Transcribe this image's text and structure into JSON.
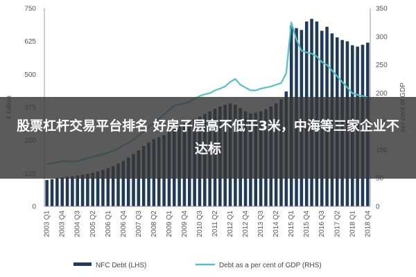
{
  "headline": "股票杠杆交易平台排名 好房子层高不低于3米，中海等三家企业不达标",
  "chart_data": {
    "type": "bar",
    "categories": [
      "2003 Q1",
      "2003 Q2",
      "2003 Q3",
      "2003 Q4",
      "2004 Q1",
      "2004 Q2",
      "2004 Q3",
      "2004 Q4",
      "2005 Q1",
      "2005 Q2",
      "2005 Q3",
      "2005 Q4",
      "2006 Q1",
      "2006 Q2",
      "2006 Q3",
      "2006 Q4",
      "2007 Q1",
      "2007 Q2",
      "2007 Q3",
      "2007 Q4",
      "2008 Q1",
      "2008 Q2",
      "2008 Q3",
      "2008 Q4",
      "2009 Q1",
      "2009 Q2",
      "2009 Q3",
      "2009 Q4",
      "2010 Q1",
      "2010 Q2",
      "2010 Q3",
      "2010 Q4",
      "2011 Q1",
      "2011 Q2",
      "2011 Q3",
      "2011 Q4",
      "2012 Q1",
      "2012 Q2",
      "2012 Q3",
      "2012 Q4",
      "2013 Q1",
      "2013 Q2",
      "2013 Q3",
      "2013 Q4",
      "2014 Q1",
      "2014 Q2",
      "2014 Q3",
      "2014 Q4",
      "2015 Q1",
      "2015 Q2",
      "2015 Q3",
      "2015 Q4",
      "2016 Q1",
      "2016 Q2",
      "2016 Q3",
      "2016 Q4",
      "2017 Q1",
      "2017 Q2",
      "2017 Q3",
      "2017 Q4",
      "2018 Q1",
      "2018 Q2",
      "2018 Q3",
      "2018 Q4"
    ],
    "x_tick_labels": [
      "2003 Q1",
      "2003 Q4",
      "2004 Q3",
      "2005 Q2",
      "2006 Q1",
      "2006 Q4",
      "2007 Q3",
      "2008 Q2",
      "2009 Q1",
      "2009 Q4",
      "2010 Q3",
      "2011 Q2",
      "2012 Q1",
      "2012 Q4",
      "2013 Q3",
      "2014 Q2",
      "2015 Q1",
      "2015 Q4",
      "2016 Q3",
      "2017 Q2",
      "2018 Q1",
      "2018 Q4"
    ],
    "series": [
      {
        "name": "NFC Debt (LHS)",
        "axis": "left",
        "kind": "bar",
        "color": "#1f3b5c",
        "values": [
          100,
          103,
          107,
          110,
          112,
          114,
          117,
          120,
          123,
          127,
          132,
          138,
          145,
          152,
          162,
          172,
          185,
          198,
          212,
          228,
          242,
          255,
          262,
          270,
          282,
          295,
          305,
          315,
          322,
          332,
          340,
          350,
          360,
          370,
          378,
          385,
          390,
          385,
          372,
          360,
          352,
          355,
          360,
          368,
          378,
          390,
          405,
          435,
          685,
          675,
          668,
          700,
          710,
          700,
          665,
          680,
          655,
          640,
          630,
          625,
          610,
          605,
          612,
          620
        ]
      },
      {
        "name": "Debt as a per cent of GDP (RHS)",
        "axis": "right",
        "kind": "line",
        "color": "#4fc3c8",
        "values": [
          75,
          76,
          78,
          80,
          80,
          79,
          80,
          83,
          85,
          88,
          90,
          92,
          95,
          98,
          102,
          108,
          112,
          118,
          125,
          132,
          140,
          148,
          155,
          162,
          170,
          178,
          180,
          182,
          185,
          190,
          195,
          198,
          200,
          205,
          208,
          212,
          220,
          225,
          215,
          210,
          205,
          205,
          208,
          210,
          212,
          215,
          218,
          235,
          325,
          295,
          275,
          272,
          270,
          265,
          255,
          250,
          240,
          230,
          220,
          210,
          200,
          197,
          195,
          193
        ]
      }
    ],
    "ylabel_left": "€ billion",
    "ylabel_right": "per cent of GDP",
    "ylim_left": [
      0,
      750
    ],
    "yticks_left": [
      "0",
      "125",
      "250",
      "375",
      "500",
      "625",
      "750"
    ],
    "ylim_right": [
      0,
      350
    ],
    "yticks_right": [
      "0",
      "50",
      "100",
      "150",
      "200",
      "250",
      "300",
      "350"
    ],
    "grid": false,
    "legend_position": "bottom"
  }
}
